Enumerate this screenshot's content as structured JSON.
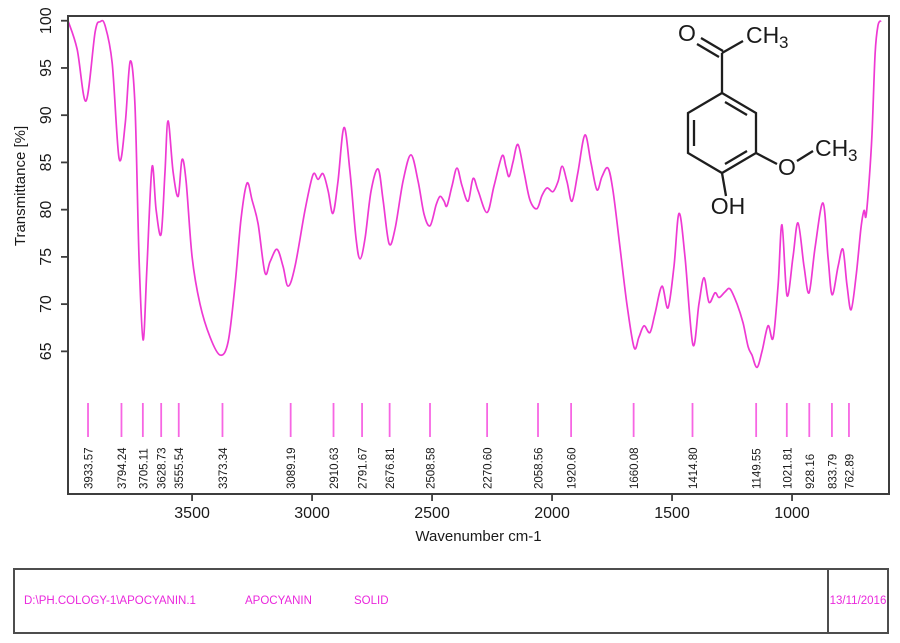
{
  "chart": {
    "colors": {
      "curve": "#ee39d3",
      "marker_line": "#f766e3",
      "axis": "#3d3d3d",
      "text": "#1a1a1a"
    }
  },
  "chart_data": {
    "type": "line",
    "title": "",
    "xlabel": "Wavenumber cm-1",
    "ylabel": "Transmittance [%]",
    "xlim": [
      4017,
      596
    ],
    "ylim": [
      49.9,
      100.5
    ],
    "x_ticks": [
      3500,
      3000,
      2500,
      2000,
      1500,
      1000
    ],
    "y_ticks": [
      100,
      95,
      90,
      85,
      80,
      75,
      70,
      65
    ],
    "grid": false,
    "legend": "none",
    "series": [
      {
        "name": "transmittance",
        "x": [
          4017,
          3979,
          3942,
          3904,
          3883,
          3863,
          3833,
          3804,
          3779,
          3758,
          3738,
          3721,
          3704,
          3688,
          3667,
          3650,
          3629,
          3613,
          3600,
          3579,
          3558,
          3542,
          3525,
          3500,
          3467,
          3425,
          3383,
          3350,
          3321,
          3296,
          3271,
          3250,
          3225,
          3196,
          3175,
          3146,
          3121,
          3100,
          3071,
          3029,
          2996,
          2975,
          2954,
          2933,
          2913,
          2892,
          2867,
          2842,
          2817,
          2800,
          2779,
          2754,
          2725,
          2704,
          2679,
          2654,
          2621,
          2588,
          2558,
          2533,
          2508,
          2483,
          2467,
          2450,
          2438,
          2417,
          2396,
          2375,
          2350,
          2329,
          2308,
          2271,
          2242,
          2208,
          2192,
          2179,
          2163,
          2142,
          2117,
          2092,
          2063,
          2042,
          2021,
          1996,
          1975,
          1958,
          1938,
          1917,
          1892,
          1863,
          1838,
          1813,
          1792,
          1767,
          1746,
          1717,
          1688,
          1658,
          1638,
          1617,
          1592,
          1571,
          1542,
          1517,
          1492,
          1471,
          1446,
          1413,
          1388,
          1367,
          1346,
          1321,
          1304,
          1279,
          1258,
          1229,
          1204,
          1183,
          1167,
          1146,
          1125,
          1100,
          1079,
          1058,
          1042,
          1021,
          996,
          975,
          950,
          929,
          904,
          871,
          850,
          833,
          808,
          788,
          771,
          754,
          733,
          713,
          700,
          692,
          679,
          667,
          654,
          642,
          629
        ],
        "y": [
          100,
          97,
          91.5,
          98.8,
          99.9,
          99.5,
          95.5,
          85.4,
          89,
          95.7,
          91,
          75,
          66.2,
          74,
          84.5,
          80,
          77.4,
          84,
          89.4,
          84,
          81.4,
          85.3,
          83,
          75,
          70,
          66.5,
          64.6,
          66,
          72,
          79,
          82.8,
          81,
          78.5,
          73.3,
          74.5,
          75.8,
          74,
          71.9,
          74,
          80,
          83.7,
          83.2,
          83.8,
          82,
          79.6,
          83,
          88.7,
          84,
          77,
          74.8,
          77,
          82,
          84.3,
          81,
          76.4,
          78,
          83,
          85.8,
          83,
          79.5,
          78.3,
          80.5,
          81.4,
          80.9,
          80.4,
          82.5,
          84.4,
          82.5,
          80.9,
          83.3,
          82,
          79.7,
          82.5,
          85.7,
          84.5,
          83.5,
          85,
          86.9,
          84,
          81,
          80.1,
          81.5,
          82.3,
          81.9,
          83,
          84.6,
          83,
          80.9,
          84,
          87.9,
          85,
          82.1,
          83.5,
          84.4,
          82,
          76,
          70,
          65.4,
          66.5,
          67.7,
          67,
          69,
          71.9,
          69.6,
          74,
          79.6,
          75,
          65.7,
          70,
          72.8,
          70.2,
          71.2,
          70.7,
          71.3,
          71.6,
          70,
          68,
          65.5,
          64.6,
          63.3,
          65,
          67.7,
          66.4,
          72,
          78.4,
          70.9,
          75,
          78.6,
          74,
          71.2,
          76,
          80.7,
          75,
          71,
          74,
          75.8,
          72,
          69.4,
          73,
          78,
          79.9,
          79.3,
          83,
          88,
          96.5,
          99.5,
          100
        ]
      }
    ],
    "peak_labels": [
      "3933.57",
      "3794.24",
      "3705.11",
      "3628.73",
      "3555.54",
      "3373.34",
      "3089.19",
      "2910.63",
      "2791.67",
      "2676.81",
      "2508.58",
      "2270.60",
      "2058.56",
      "1920.60",
      "1660.08",
      "1414.80",
      "1149.55",
      "1021.81",
      "928.16",
      "833.79",
      "762.89"
    ]
  },
  "molecule": {
    "name": "apocynin structure",
    "labels": {
      "carbonyl_o": "O",
      "acetyl_ch": "CH",
      "acetyl_sub": "3",
      "methoxy_o": "O",
      "methoxy_ch": "CH",
      "methoxy_sub": "3",
      "hydroxyl": "OH"
    }
  },
  "footer": {
    "file_path": "D:\\PH.COLOGY-1\\APOCYANIN.1",
    "sample_name": "APOCYANIN",
    "form": "SOLID",
    "date": "13/11/2016"
  }
}
